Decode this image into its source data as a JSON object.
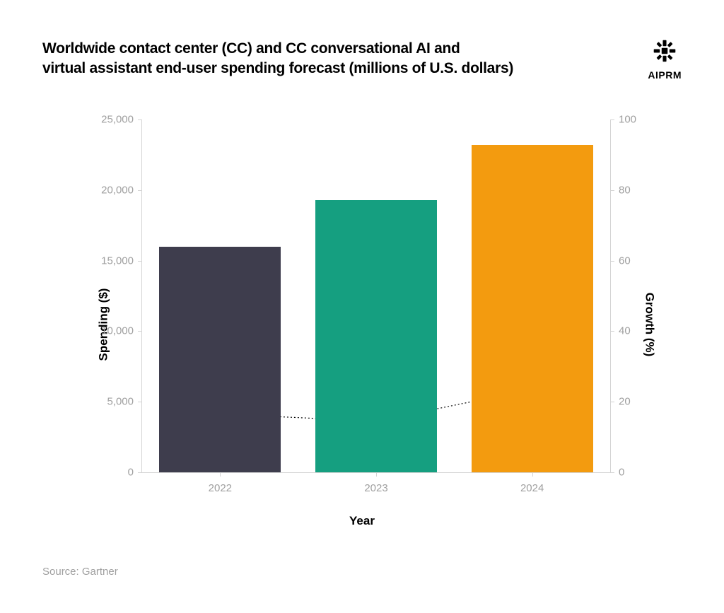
{
  "title_line1": "Worldwide contact center (CC) and CC conversational AI and",
  "title_line2": "virtual assistant end-user spending forecast (millions of U.S. dollars)",
  "brand": "AIPRM",
  "source": "Source: Gartner",
  "chart": {
    "type": "bar+line",
    "x_label": "Year",
    "y_left_label": "Spending ($)",
    "y_right_label": "Growth (%)",
    "y_left": {
      "min": 0,
      "max": 25000,
      "step": 5000,
      "ticks": [
        "0",
        "5,000",
        "10,000",
        "15,000",
        "20,000",
        "25,000"
      ]
    },
    "y_right": {
      "min": 0,
      "max": 100,
      "step": 20,
      "ticks": [
        "0",
        "20",
        "40",
        "60",
        "80",
        "100"
      ]
    },
    "categories": [
      "2022",
      "2023",
      "2024"
    ],
    "bars": {
      "values": [
        16000,
        19300,
        23200
      ],
      "colors": [
        "#3e3d4d",
        "#159f80",
        "#f39b0f"
      ],
      "width_pct": 26
    },
    "line": {
      "values": [
        16.5,
        14.5,
        23.5
      ],
      "stroke": "#000000",
      "dash": "2 3",
      "marker_radius": 5,
      "marker_fill": "#ffffff",
      "marker_stroke": "#000000"
    },
    "axis_color": "#d4d4d4",
    "tick_text_color": "#9f9f9f",
    "background": "#ffffff"
  }
}
